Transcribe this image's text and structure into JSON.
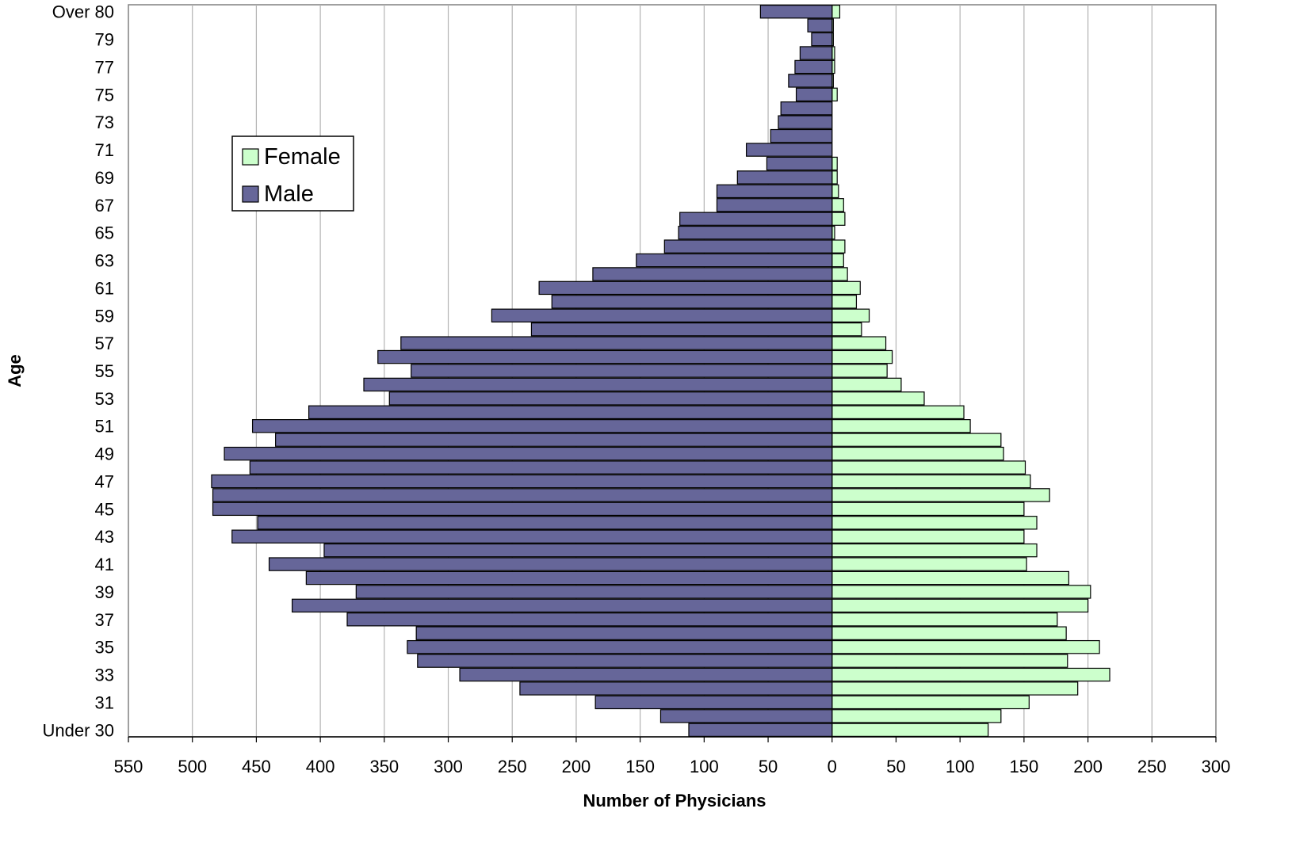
{
  "chart_data": {
    "type": "bar",
    "orientation": "horizontal-pyramid",
    "title": "",
    "xlabel": "Number of Physicians",
    "ylabel": "Age",
    "xlim": [
      -550,
      300
    ],
    "x_ticks": [
      -550,
      -500,
      -450,
      -400,
      -350,
      -300,
      -250,
      -200,
      -150,
      -100,
      -50,
      0,
      50,
      100,
      150,
      200,
      250,
      300
    ],
    "x_tick_labels": [
      "550",
      "500",
      "450",
      "400",
      "350",
      "300",
      "250",
      "200",
      "150",
      "100",
      "50",
      "0",
      "50",
      "100",
      "150",
      "200",
      "250",
      "300"
    ],
    "grid": "vertical",
    "legend": "left-upper",
    "categories": [
      "Over 80",
      "80",
      "79",
      "78",
      "77",
      "76",
      "75",
      "74",
      "73",
      "72",
      "71",
      "70",
      "69",
      "68",
      "67",
      "66",
      "65",
      "64",
      "63",
      "62",
      "61",
      "60",
      "59",
      "58",
      "57",
      "56",
      "55",
      "54",
      "53",
      "52",
      "51",
      "50",
      "49",
      "48",
      "47",
      "46",
      "45",
      "44",
      "43",
      "42",
      "41",
      "40",
      "39",
      "38",
      "37",
      "36",
      "35",
      "34",
      "33",
      "32",
      "31",
      "30",
      "Under 30"
    ],
    "y_tick_labels": [
      "Over 80",
      "79",
      "77",
      "75",
      "73",
      "71",
      "69",
      "67",
      "65",
      "63",
      "61",
      "59",
      "57",
      "55",
      "53",
      "51",
      "49",
      "47",
      "45",
      "43",
      "41",
      "39",
      "37",
      "35",
      "33",
      "31",
      "Under 30"
    ],
    "series": [
      {
        "name": "Female",
        "color": "#ccffcc",
        "values": [
          6,
          1,
          1,
          2,
          2,
          1,
          4,
          0,
          0,
          0,
          0,
          4,
          4,
          5,
          9,
          10,
          2,
          10,
          9,
          12,
          22,
          19,
          29,
          23,
          42,
          47,
          43,
          54,
          72,
          103,
          108,
          132,
          134,
          151,
          155,
          170,
          150,
          160,
          150,
          160,
          152,
          185,
          202,
          200,
          176,
          183,
          209,
          184,
          217,
          192,
          154,
          132,
          122
        ]
      },
      {
        "name": "Male",
        "color": "#666699",
        "values": [
          56,
          19,
          16,
          25,
          29,
          34,
          28,
          40,
          42,
          48,
          67,
          51,
          74,
          90,
          90,
          119,
          120,
          131,
          153,
          187,
          229,
          219,
          266,
          235,
          337,
          355,
          329,
          366,
          346,
          409,
          453,
          435,
          475,
          455,
          485,
          484,
          484,
          449,
          469,
          397,
          440,
          411,
          372,
          422,
          379,
          325,
          332,
          324,
          291,
          244,
          185,
          134,
          112
        ]
      }
    ]
  }
}
